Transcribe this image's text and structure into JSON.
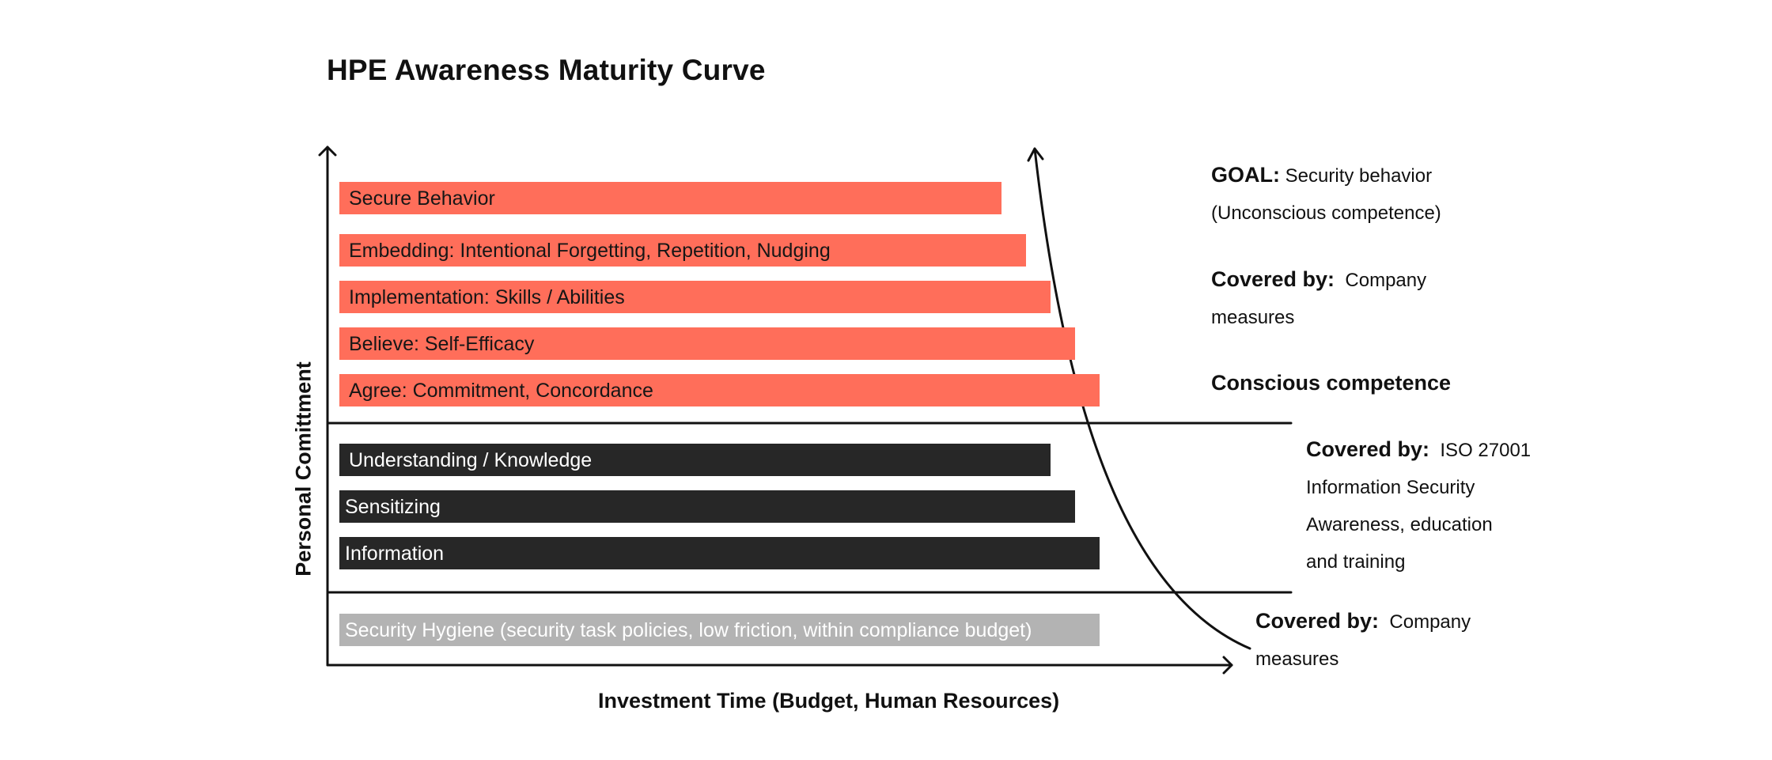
{
  "title": "HPE Awareness Maturity Curve",
  "y_axis_label": "Personal Comittment",
  "x_axis_label": "Investment Time (Budget, Human Resources)",
  "bars": {
    "secure_behavior": "Secure Behavior",
    "embedding": "Embedding: Intentional Forgetting, Repetition, Nudging",
    "implementation": "Implementation: Skills / Abilities",
    "believe": "Believe: Self-Efficacy",
    "agree": "Agree: Commitment, Concordance",
    "understanding": "Understanding / Knowledge",
    "sensitizing": "Sensitizing",
    "information": "Information",
    "hygiene": "Security Hygiene (security task policies, low friction, within compliance budget)"
  },
  "colors": {
    "red_bar": "#ff6e5a",
    "dark_bar": "#272727",
    "grey_bar": "#b3b3b3"
  },
  "notes": {
    "goal_label": "GOAL:",
    "goal_text": "Security behavior",
    "goal_text2": "(Unconscious competence)",
    "covered1_label": "Covered by:",
    "covered1_text": "Company",
    "covered1_text2": "measures",
    "conscious": "Conscious competence",
    "covered2_label": "Covered by:",
    "covered2_text": "ISO 27001",
    "covered2_line2": "Information Security",
    "covered2_line3": "Awareness, education",
    "covered2_line4": "and training",
    "covered3_label": "Covered by:",
    "covered3_text": "Company",
    "covered3_text2": "measures"
  }
}
